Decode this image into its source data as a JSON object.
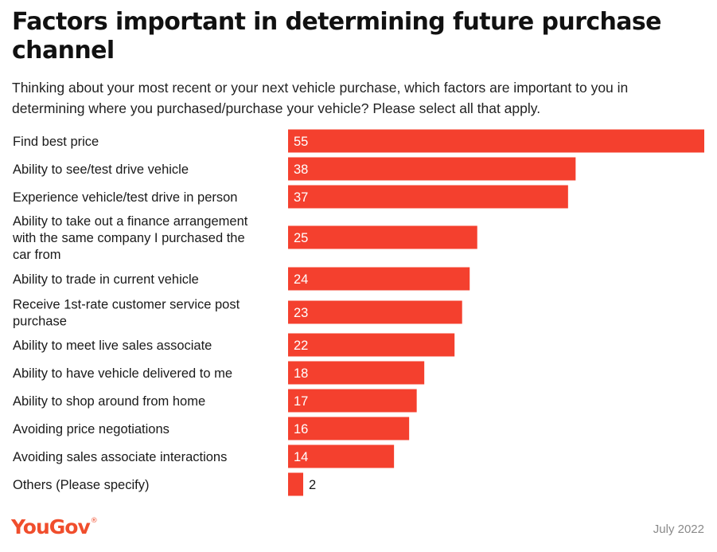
{
  "title": "Factors important in determining future purchase channel",
  "subtitle": "Thinking about your most recent or your next vehicle purchase, which factors are important to you in determining where you purchased/purchase your vehicle? Please select all that apply.",
  "footer": {
    "logo": "YouGov",
    "date": "July 2022"
  },
  "colors": {
    "bar": "#f4402e",
    "logo": "#f04e2d"
  },
  "chart_data": {
    "type": "bar",
    "orientation": "horizontal",
    "categories": [
      "Find best price",
      "Ability to see/test drive vehicle",
      "Experience vehicle/test drive in person",
      "Ability to take out a finance arrangement with the same company I purchased the car from",
      "Ability to trade in current vehicle",
      "Receive 1st-rate customer service post purchase",
      "Ability to meet live sales associate",
      "Ability to have vehicle delivered to me",
      "Ability to shop around from home",
      "Avoiding price negotiations",
      "Avoiding sales associate interactions",
      "Others (Please specify)"
    ],
    "label_lines": [
      [
        "Find best price"
      ],
      [
        "Ability to see/test drive vehicle"
      ],
      [
        "Experience vehicle/test drive in person"
      ],
      [
        "Ability to take out a finance arrangement",
        "with the same company I purchased the",
        "car from"
      ],
      [
        "Ability to trade in current vehicle"
      ],
      [
        "Receive 1st-rate customer service post",
        "purchase"
      ],
      [
        "Ability to meet live sales associate"
      ],
      [
        "Ability to have vehicle delivered to me"
      ],
      [
        "Ability to shop around from home"
      ],
      [
        "Avoiding price negotiations"
      ],
      [
        "Avoiding sales associate interactions"
      ],
      [
        "Others (Please specify)"
      ]
    ],
    "values": [
      55,
      38,
      37,
      25,
      24,
      23,
      22,
      18,
      17,
      16,
      14,
      2
    ],
    "xlim": [
      0,
      55
    ],
    "grid": false,
    "data_labels": true
  }
}
